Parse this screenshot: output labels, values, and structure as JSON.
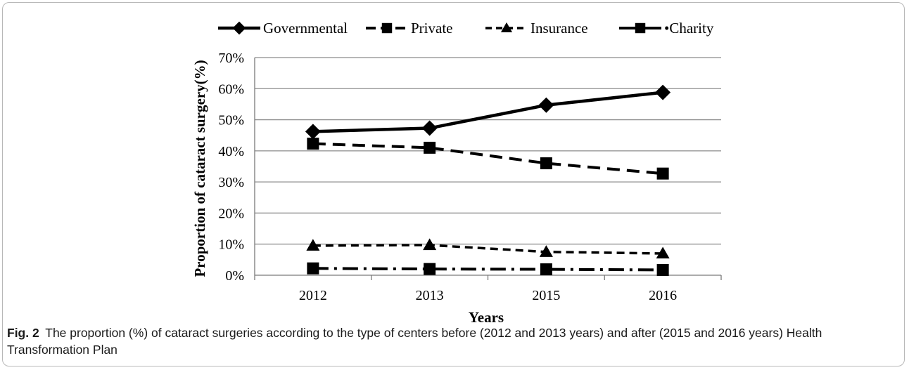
{
  "chart_data": {
    "type": "line",
    "title": "",
    "xlabel": "Years",
    "ylabel": "Proportion of cataract surgery(%)",
    "categories": [
      "2012",
      "2013",
      "2015",
      "2016"
    ],
    "ylim": [
      0,
      70
    ],
    "yticks": [
      "0%",
      "10%",
      "20%",
      "30%",
      "40%",
      "50%",
      "60%",
      "70%"
    ],
    "grid": true,
    "legend_position": "top",
    "series": [
      {
        "name": "Governmental",
        "values": [
          46.2,
          47.3,
          54.7,
          58.8
        ],
        "marker": "diamond",
        "dash": "solid"
      },
      {
        "name": "Private",
        "values": [
          42.3,
          41.0,
          36.0,
          32.7
        ],
        "marker": "square",
        "dash": "dashed"
      },
      {
        "name": "Insurance",
        "values": [
          9.5,
          9.7,
          7.5,
          7.0
        ],
        "marker": "triangle",
        "dash": "short-dashed"
      },
      {
        "name": "Charity",
        "values": [
          2.2,
          2.0,
          1.9,
          1.7
        ],
        "marker": "square",
        "dash": "dash-dot",
        "legend_label": "•Charity"
      }
    ]
  },
  "caption": {
    "label": "Fig. 2",
    "text": "The proportion (%) of cataract surgeries according to the type of centers before (2012 and 2013 years) and after (2015 and 2016 years) Health Transformation Plan"
  }
}
